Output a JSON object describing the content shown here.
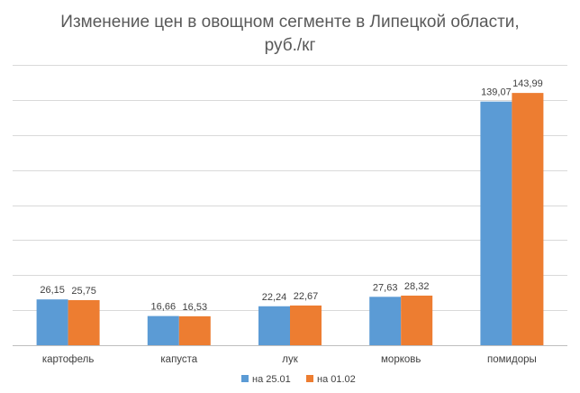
{
  "chart_data": {
    "type": "bar",
    "title_lines": [
      "Изменение цен в овощном сегменте в Липецкой области,",
      "руб./кг"
    ],
    "categories": [
      "картофель",
      "капуста",
      "лук",
      "морковь",
      "помидоры"
    ],
    "series": [
      {
        "name": "на 25.01",
        "color": "#5b9bd5",
        "values": [
          26.15,
          16.66,
          22.24,
          27.63,
          139.07
        ],
        "labels": [
          "26,15",
          "16,66",
          "22,24",
          "27,63",
          "139,07"
        ]
      },
      {
        "name": "на 01.02",
        "color": "#ed7d31",
        "values": [
          25.75,
          16.53,
          22.67,
          28.32,
          143.99
        ],
        "labels": [
          "25,75",
          "16,53",
          "22,67",
          "28,32",
          "143,99"
        ]
      }
    ],
    "ylim": [
      0,
      160
    ],
    "grid": true,
    "legend_position": "bottom"
  }
}
